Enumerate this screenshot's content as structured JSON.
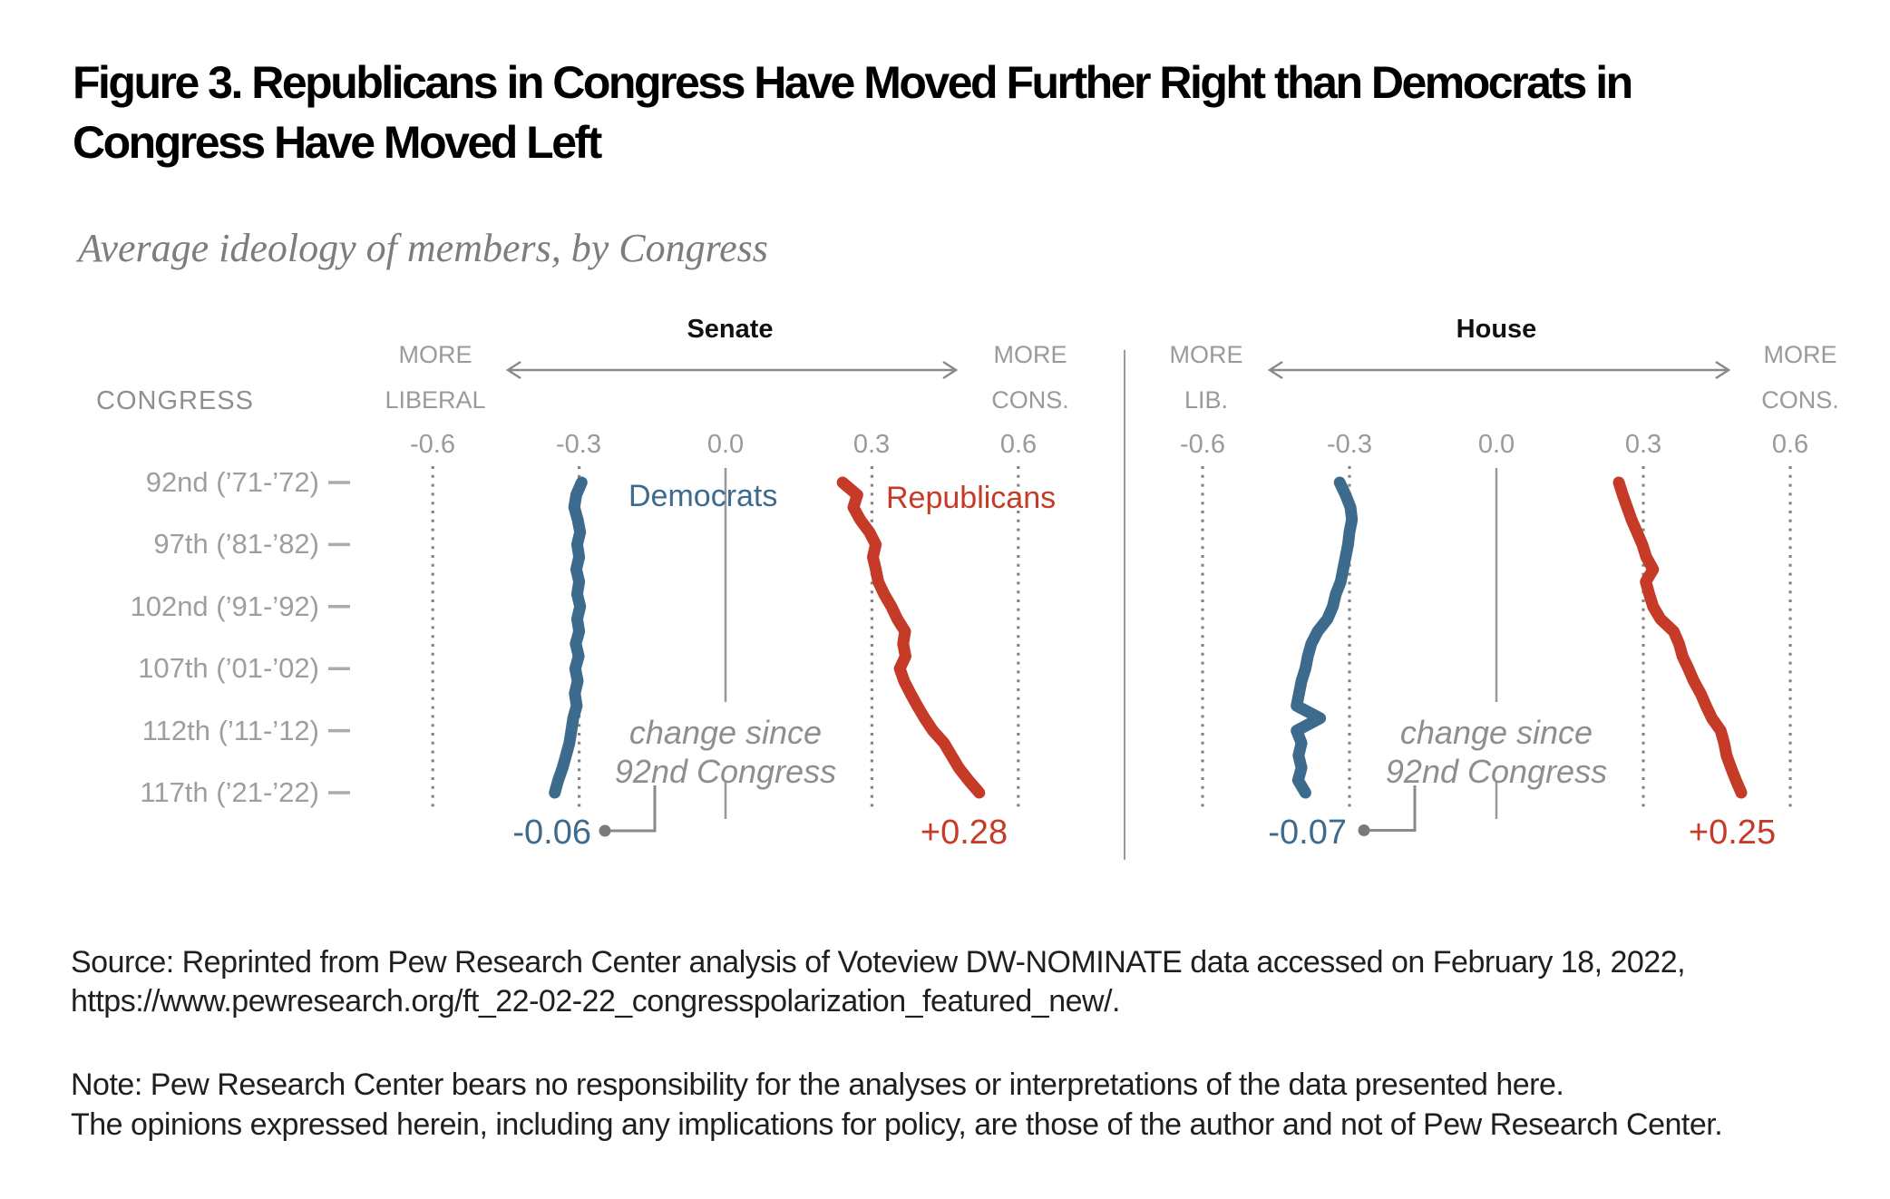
{
  "title": "Figure 3. Republicans in Congress Have Moved Further Right than Democrats in\nCongress Have Moved Left",
  "subtitle": "Average ideology of members, by Congress",
  "left_axis": {
    "header": "CONGRESS",
    "rows": [
      "92nd (’71-’72)",
      "97th (’81-’82)",
      "102nd (’91-’92)",
      "107th (’01-’02)",
      "112th (’11-’12)",
      "117th (’21-’22)"
    ]
  },
  "panels": [
    {
      "title": "Senate",
      "left_label": "MORE\nLIBERAL",
      "right_label": "MORE\nCONS.",
      "ticks": [
        "-0.6",
        "-0.3",
        "0.0",
        "0.3",
        "0.6"
      ],
      "annotation": "change since\n92nd Congress",
      "dem_label": "Democrats",
      "rep_label": "Republicans",
      "change": {
        "dem": "-0.06",
        "rep": "+0.28"
      }
    },
    {
      "title": "House",
      "left_label": "MORE\nLIB.",
      "right_label": "MORE\nCONS.",
      "ticks": [
        "-0.6",
        "-0.3",
        "0.0",
        "0.3",
        "0.6"
      ],
      "annotation": "change since\n92nd Congress",
      "change": {
        "dem": "-0.07",
        "rep": "+0.25"
      }
    }
  ],
  "colors": {
    "democrat": "#3d6b8e",
    "republican": "#c53b27"
  },
  "chart_data": {
    "type": "line",
    "title": "Average ideology of members, by Congress",
    "x_axis": {
      "ticks": [
        -0.6,
        -0.3,
        0.0,
        0.3,
        0.6
      ],
      "left_end": "MORE LIBERAL",
      "right_end": "MORE CONS.",
      "grid": "dotted at ±0.3 and ±0.6, solid at 0.0"
    },
    "y_axis": {
      "label": "CONGRESS",
      "congresses": [
        92,
        93,
        94,
        95,
        96,
        97,
        98,
        99,
        100,
        101,
        102,
        103,
        104,
        105,
        106,
        107,
        108,
        109,
        110,
        111,
        112,
        113,
        114,
        115,
        116,
        117
      ],
      "labeled_rows": [
        "92nd (’71-’72)",
        "97th (’81-’82)",
        "102nd (’91-’92)",
        "107th (’01-’02)",
        "112th (’11-’12)",
        "117th (’21-’22)"
      ]
    },
    "panels": [
      {
        "name": "Senate",
        "series": [
          {
            "name": "Democrats",
            "color": "#3d6b8e",
            "change_since_92nd": -0.06,
            "values": [
              -0.295,
              -0.306,
              -0.31,
              -0.303,
              -0.298,
              -0.304,
              -0.3,
              -0.306,
              -0.3,
              -0.304,
              -0.298,
              -0.304,
              -0.3,
              -0.307,
              -0.301,
              -0.308,
              -0.303,
              -0.309,
              -0.305,
              -0.312,
              -0.316,
              -0.32,
              -0.327,
              -0.334,
              -0.343,
              -0.35
            ]
          },
          {
            "name": "Republicans",
            "color": "#c53b27",
            "change_since_92nd": 0.28,
            "values": [
              0.24,
              0.27,
              0.262,
              0.276,
              0.295,
              0.308,
              0.302,
              0.308,
              0.313,
              0.325,
              0.34,
              0.352,
              0.368,
              0.364,
              0.369,
              0.357,
              0.366,
              0.379,
              0.393,
              0.408,
              0.425,
              0.448,
              0.463,
              0.478,
              0.498,
              0.52
            ]
          }
        ]
      },
      {
        "name": "House",
        "series": [
          {
            "name": "Democrats",
            "color": "#3d6b8e",
            "change_since_92nd": -0.07,
            "values": [
              -0.32,
              -0.308,
              -0.298,
              -0.295,
              -0.3,
              -0.303,
              -0.308,
              -0.313,
              -0.318,
              -0.328,
              -0.334,
              -0.345,
              -0.365,
              -0.378,
              -0.385,
              -0.39,
              -0.398,
              -0.403,
              -0.408,
              -0.36,
              -0.408,
              -0.398,
              -0.404,
              -0.398,
              -0.405,
              -0.39
            ]
          },
          {
            "name": "Republicans",
            "color": "#c53b27",
            "change_since_92nd": 0.25,
            "values": [
              0.25,
              0.258,
              0.267,
              0.276,
              0.287,
              0.298,
              0.306,
              0.32,
              0.305,
              0.312,
              0.32,
              0.335,
              0.362,
              0.373,
              0.38,
              0.392,
              0.403,
              0.417,
              0.428,
              0.44,
              0.458,
              0.465,
              0.47,
              0.479,
              0.489,
              0.5
            ]
          }
        ]
      }
    ]
  },
  "footer": {
    "source": "Source: Reprinted from Pew Research Center analysis of Voteview DW-NOMINATE data accessed on February 18, 2022,\nhttps://www.pewresearch.org/ft_22-02-22_congresspolarization_featured_new/.",
    "note": "Note: Pew Research Center bears no responsibility for the analyses or interpretations of the data presented here.\nThe opinions expressed herein, including any implications for policy, are those of the author and not of Pew Research Center."
  }
}
